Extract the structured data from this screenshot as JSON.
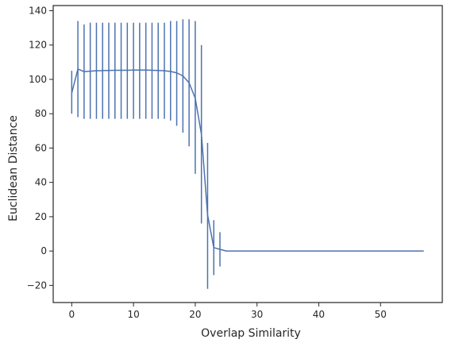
{
  "chart_data": {
    "type": "line",
    "title": "",
    "xlabel": "Overlap Similarity",
    "ylabel": "Euclidean Distance",
    "xlim": [
      -3,
      60
    ],
    "ylim": [
      -30,
      143
    ],
    "xticks": [
      0,
      10,
      20,
      30,
      40,
      50
    ],
    "yticks": [
      -20,
      0,
      20,
      40,
      60,
      80,
      100,
      120,
      140
    ],
    "ytick_labels": [
      "−20",
      "0",
      "20",
      "40",
      "60",
      "80",
      "100",
      "120",
      "140"
    ],
    "grid": false,
    "legend": "none",
    "color": "#4c72b0",
    "series": [
      {
        "x": [
          0,
          1,
          2,
          3,
          4,
          5,
          6,
          7,
          8,
          9,
          10,
          11,
          12,
          13,
          14,
          15,
          16,
          17,
          18,
          19,
          20,
          21,
          22,
          23,
          24,
          25,
          26,
          27,
          28,
          29,
          30,
          31,
          32,
          33,
          34,
          35,
          36,
          37,
          38,
          39,
          40,
          41,
          42,
          43,
          44,
          45,
          46,
          47,
          48,
          49,
          50,
          51,
          52,
          53,
          54,
          55,
          56,
          57
        ],
        "y": [
          92,
          106,
          104.5,
          104.8,
          105,
          105.1,
          105.2,
          105.3,
          105.3,
          105.3,
          105.4,
          105.4,
          105.4,
          105.3,
          105.2,
          105.0,
          104.6,
          103.8,
          102,
          98,
          89,
          68,
          21,
          2,
          1,
          0,
          0,
          0,
          0,
          0,
          0,
          0,
          0,
          0,
          0,
          0,
          0,
          0,
          0,
          0,
          0,
          0,
          0,
          0,
          0,
          0,
          0,
          0,
          0,
          0,
          0,
          0,
          0,
          0,
          0,
          0,
          0,
          0
        ],
        "err_low": [
          80,
          78,
          77,
          77,
          77,
          77,
          77,
          77,
          77,
          77,
          77,
          77,
          77,
          77,
          77,
          77,
          76,
          73,
          69,
          61,
          45,
          16,
          -22,
          -14,
          -9
        ],
        "err_high": [
          105,
          134,
          132,
          133,
          133,
          133,
          133,
          133,
          133,
          133,
          133,
          133,
          133,
          133,
          133,
          133,
          134,
          134,
          135,
          135,
          134,
          120,
          63,
          18,
          11
        ]
      }
    ]
  }
}
